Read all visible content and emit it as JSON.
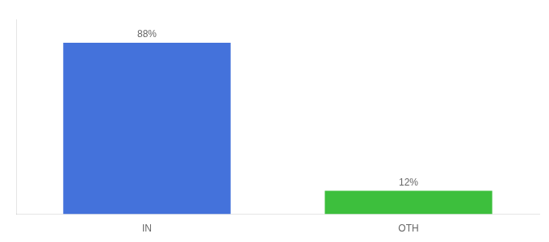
{
  "chart_data": {
    "type": "bar",
    "categories": [
      "IN",
      "OTH"
    ],
    "values": [
      88,
      12
    ],
    "colors": [
      "#4472db",
      "#3dbf3d"
    ],
    "data_labels": true,
    "value_labels": [
      "88%",
      "12%"
    ],
    "ylim": [
      0,
      100
    ],
    "tick_labels": "x",
    "grid": false
  }
}
